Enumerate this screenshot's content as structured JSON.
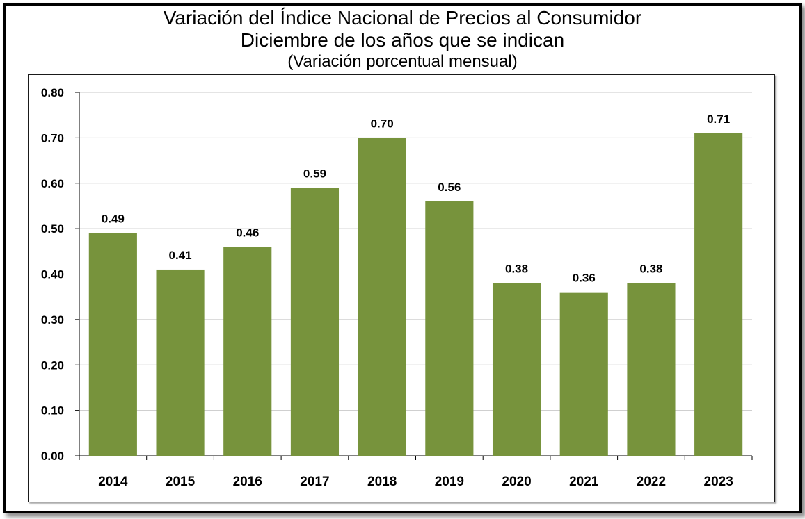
{
  "chart_data": {
    "type": "bar",
    "title": "Variación del Índice Nacional de Precios al Consumidor",
    "subtitle": "Diciembre de los años que se indican",
    "subtitle2": "(Variación porcentual mensual)",
    "categories": [
      "2014",
      "2015",
      "2016",
      "2017",
      "2018",
      "2019",
      "2020",
      "2021",
      "2022",
      "2023"
    ],
    "values": [
      0.49,
      0.41,
      0.46,
      0.59,
      0.7,
      0.56,
      0.38,
      0.36,
      0.38,
      0.71
    ],
    "data_labels": [
      "0.49",
      "0.41",
      "0.46",
      "0.59",
      "0.70",
      "0.56",
      "0.38",
      "0.36",
      "0.38",
      "0.71"
    ],
    "ylim": [
      0,
      0.8
    ],
    "yticks": [
      "0.00",
      "0.10",
      "0.20",
      "0.30",
      "0.40",
      "0.50",
      "0.60",
      "0.70",
      "0.80"
    ],
    "xlabel": "",
    "ylabel": "",
    "grid": true,
    "legend": "none",
    "colors": {
      "bar": "#77933c",
      "grid": "#c8c8c8",
      "axis": "#000000"
    }
  }
}
